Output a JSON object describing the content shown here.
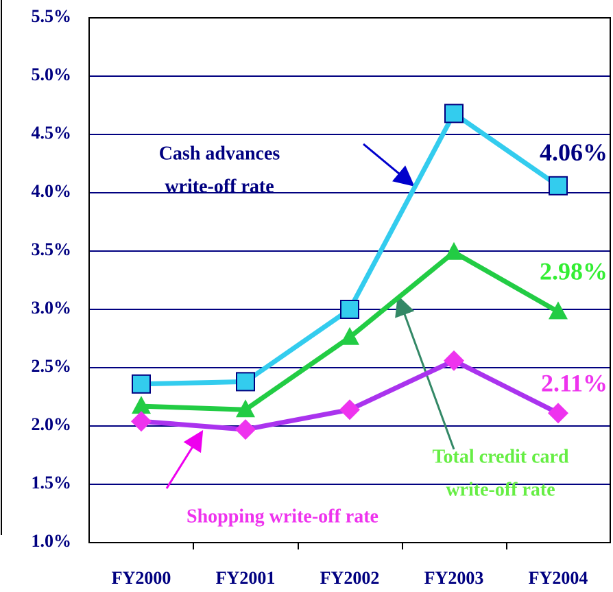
{
  "chart_data": {
    "type": "line",
    "categories": [
      "FY2000",
      "FY2001",
      "FY2002",
      "FY2003",
      "FY2004"
    ],
    "series": [
      {
        "name": "Cash advances write-off rate",
        "color": "#33ccee",
        "marker": "square",
        "marker_color": "#33ccee",
        "label_color": "#000080",
        "values": [
          2.36,
          2.38,
          3.0,
          4.68,
          4.06
        ],
        "value_labels": [
          null,
          null,
          null,
          null,
          "4.06%"
        ]
      },
      {
        "name": "Total credit card write-off rate",
        "color": "#22cc44",
        "marker": "triangle",
        "marker_color": "#22cc44",
        "label_color": "#33ee33",
        "values": [
          2.17,
          2.14,
          2.76,
          3.49,
          2.98
        ],
        "value_labels": [
          null,
          null,
          null,
          null,
          "2.98%"
        ]
      },
      {
        "name": "Shopping write-off rate",
        "color": "#aa33ee",
        "marker": "diamond",
        "marker_color": "#ee33ee",
        "label_color": "#ee33ee",
        "values": [
          2.04,
          1.97,
          2.14,
          2.56,
          2.11
        ],
        "value_labels": [
          null,
          null,
          null,
          null,
          "2.11%"
        ]
      }
    ],
    "annotations": [
      {
        "lines": [
          "Cash advances",
          "write-off rate"
        ],
        "color": "#000080"
      },
      {
        "lines": [
          "Total credit card",
          "write-off rate"
        ],
        "color": "#66ee44"
      },
      {
        "lines": [
          "Shopping write-off rate"
        ],
        "color": "#ee33ee"
      }
    ],
    "ylim": [
      1.0,
      5.5
    ],
    "yticks": [
      {
        "value": 1.0,
        "label": "1.0%"
      },
      {
        "value": 1.5,
        "label": "1.5%"
      },
      {
        "value": 2.0,
        "label": "2.0%"
      },
      {
        "value": 2.5,
        "label": "2.5%"
      },
      {
        "value": 3.0,
        "label": "3.0%"
      },
      {
        "value": 3.5,
        "label": "3.5%"
      },
      {
        "value": 4.0,
        "label": "4.0%"
      },
      {
        "value": 4.5,
        "label": "4.5%"
      },
      {
        "value": 5.0,
        "label": "5.0%"
      },
      {
        "value": 5.5,
        "label": "5.5%"
      }
    ],
    "grid": true,
    "grid_color": "#000080"
  }
}
